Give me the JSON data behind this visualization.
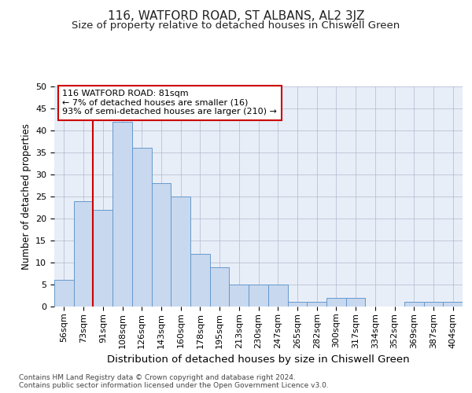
{
  "title1": "116, WATFORD ROAD, ST ALBANS, AL2 3JZ",
  "title2": "Size of property relative to detached houses in Chiswell Green",
  "xlabel": "Distribution of detached houses by size in Chiswell Green",
  "ylabel": "Number of detached properties",
  "categories": [
    "56sqm",
    "73sqm",
    "91sqm",
    "108sqm",
    "126sqm",
    "143sqm",
    "160sqm",
    "178sqm",
    "195sqm",
    "213sqm",
    "230sqm",
    "247sqm",
    "265sqm",
    "282sqm",
    "300sqm",
    "317sqm",
    "334sqm",
    "352sqm",
    "369sqm",
    "387sqm",
    "404sqm"
  ],
  "values": [
    6,
    24,
    22,
    42,
    36,
    28,
    25,
    12,
    9,
    5,
    5,
    5,
    1,
    1,
    2,
    2,
    0,
    0,
    1,
    1,
    1
  ],
  "bar_color": "#c8d8ee",
  "bar_edge_color": "#6699cc",
  "background_color": "#e8eef8",
  "grid_color": "#b0b8cc",
  "vline_color": "#cc0000",
  "vline_x_idx": 1.5,
  "annotation_text": "116 WATFORD ROAD: 81sqm\n← 7% of detached houses are smaller (16)\n93% of semi-detached houses are larger (210) →",
  "annotation_box_facecolor": "#ffffff",
  "annotation_box_edgecolor": "#cc0000",
  "ylim": [
    0,
    50
  ],
  "yticks": [
    0,
    5,
    10,
    15,
    20,
    25,
    30,
    35,
    40,
    45,
    50
  ],
  "footer": "Contains HM Land Registry data © Crown copyright and database right 2024.\nContains public sector information licensed under the Open Government Licence v3.0.",
  "title1_fontsize": 11,
  "title2_fontsize": 9.5,
  "xlabel_fontsize": 9.5,
  "ylabel_fontsize": 8.5,
  "tick_fontsize": 8,
  "annotation_fontsize": 8,
  "footer_fontsize": 6.5
}
